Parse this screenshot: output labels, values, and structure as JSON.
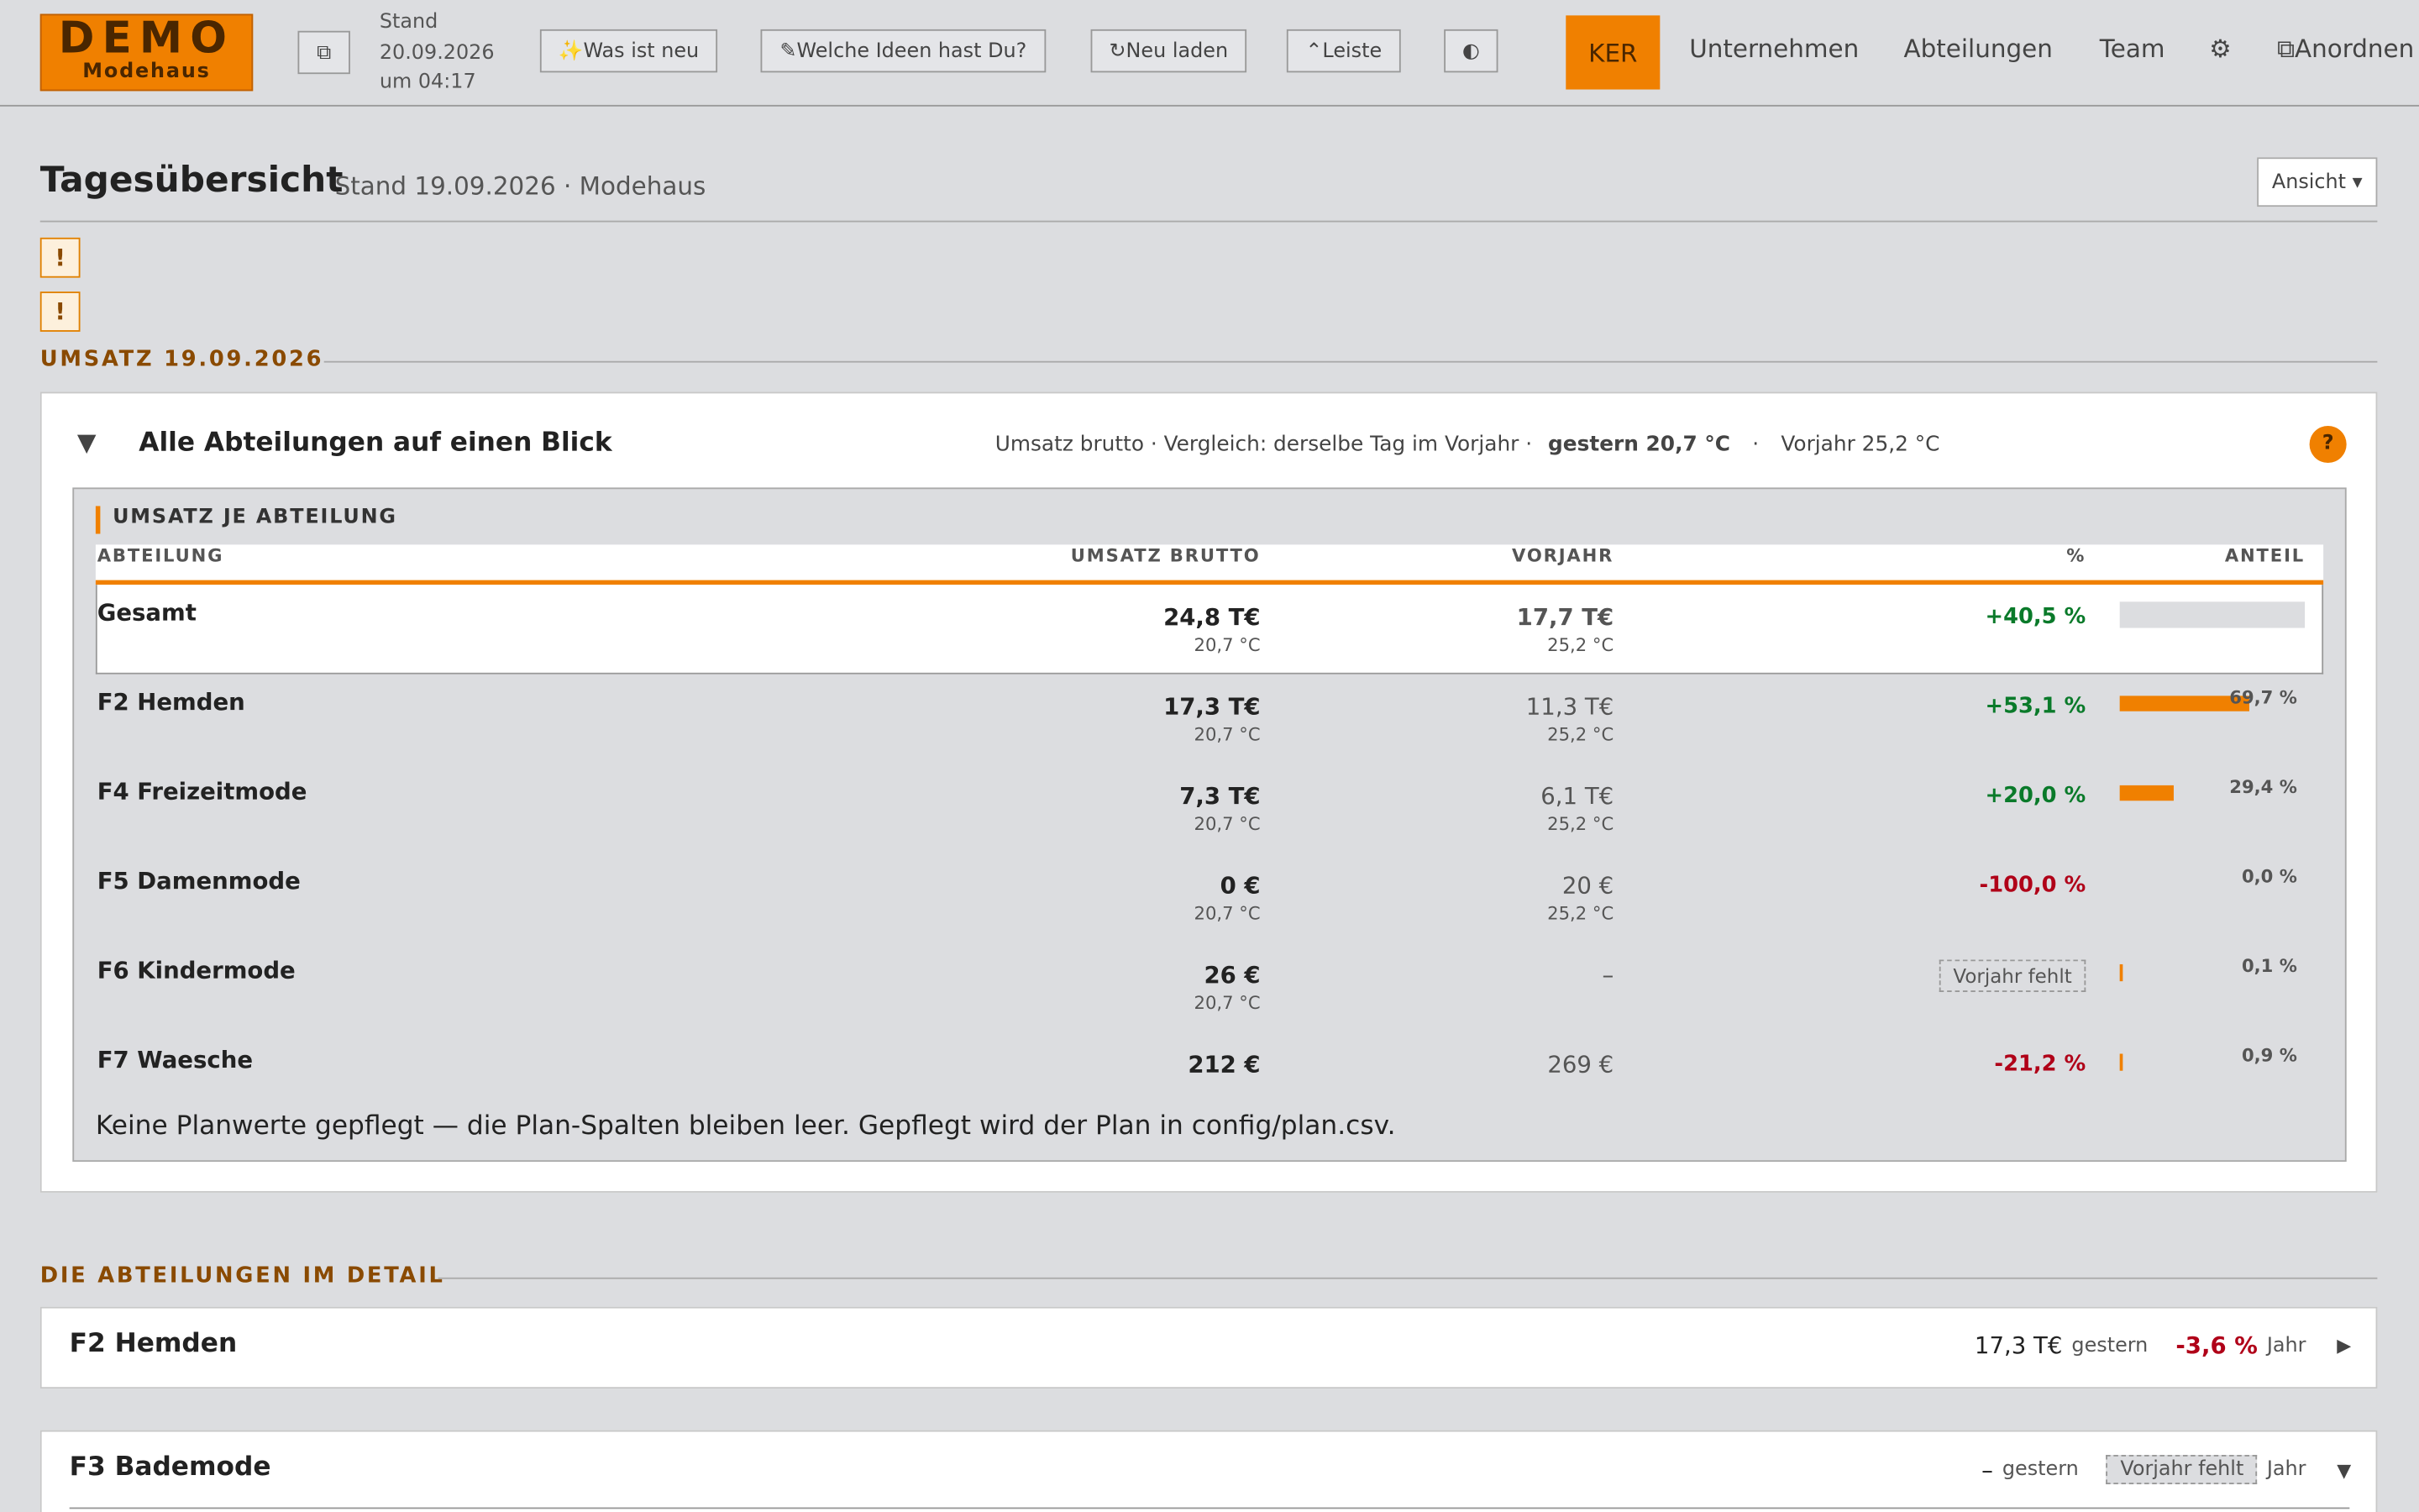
{
  "header": {
    "logo_title": "DEMO",
    "logo_sub": "Modehaus",
    "copy_icon": "⧉",
    "stand_label": "Stand",
    "stand_date": "20.09.2026",
    "stand_time": "um 04:17",
    "buttons": [
      "✨Was ist neu",
      "✎Welche Ideen hast Du?",
      "↻Neu laden",
      "⌃Leiste"
    ],
    "theme_icon": "◐",
    "nav": [
      "KER",
      "Unternehmen",
      "Abteilungen",
      "Team"
    ],
    "settings_icon": "⚙",
    "arrange": "⧉Anordnen"
  },
  "page": {
    "title": "Tagesübersicht",
    "subtitle": "Stand 19.09.2026 · Modehaus",
    "view_button": "Ansicht ▾",
    "alerts": [
      "!",
      "!"
    ]
  },
  "section1": {
    "heading": "UMSATZ 19.09.2026",
    "card": {
      "toggle": "▼",
      "title": "Alle Abteilungen auf einen Blick",
      "info": "Umsatz brutto · Vergleich: derselbe Tag im Vorjahr ·",
      "yesterday": "gestern 20,7 °C",
      "sep": "·",
      "prev_year": "Vorjahr 25,2 °C",
      "help": "?"
    }
  },
  "table": {
    "heading": "UMSATZ JE ABTEILUNG",
    "columns": [
      "ABTEILUNG",
      "UMSATZ BRUTTO",
      "VORJAHR",
      "%",
      "ANTEIL"
    ],
    "rows": [
      {
        "name": "Gesamt",
        "revenue": "24,8 T€",
        "temp": "20,7 °C",
        "prev": "17,7 T€",
        "prev_temp": "25,2 °C",
        "change": "+40,5 %"
      },
      {
        "name": "F2 Hemden",
        "revenue": "17,3 T€",
        "temp": "20,7 °C",
        "prev": "11,3 T€",
        "prev_temp": "25,2 °C",
        "change": "+53,1 %",
        "share": {
          "value": 69.7,
          "label": "69,7 %"
        }
      },
      {
        "name": "F4 Freizeitmode",
        "revenue": "7,3 T€",
        "temp": "20,7 °C",
        "prev": "6,1 T€",
        "prev_temp": "25,2 °C",
        "change": "+20,0 %",
        "share": {
          "value": 29.4,
          "label": "29,4 %"
        }
      },
      {
        "name": "F5 Damenmode",
        "revenue": "0 €",
        "temp": "20,7 °C",
        "prev": "20 €",
        "prev_temp": "25,2 °C",
        "change": "-100,0 %",
        "share": {
          "value": 0.0,
          "label": "0,0 %"
        }
      },
      {
        "name": "F6 Kindermode",
        "revenue": "26 €",
        "temp": "20,7 °C",
        "prev": "–",
        "badge": "Vorjahr fehlt",
        "share": {
          "value": 0.1,
          "label": "0,1 %"
        }
      },
      {
        "name": "F7 Waesche",
        "revenue": "212 €",
        "prev": "269 €",
        "change": "-21,2 %",
        "share": {
          "value": 0.9,
          "label": "0,9 %"
        }
      }
    ],
    "note": "Keine Planwerte gepflegt — die Plan-Spalten bleiben leer. Gepflegt wird der Plan in config/plan.csv."
  },
  "section2": {
    "heading": "DIE ABTEILUNGEN IM DETAIL",
    "items": [
      {
        "name": "F2 Hemden",
        "value": "17,3 T€",
        "value_note": "gestern",
        "change": "-3,6 %",
        "change_note": "Jahr",
        "toggle": "▶"
      },
      {
        "name": "F3 Bademode",
        "value": "–",
        "value_note": "gestern",
        "badge": "Vorjahr fehlt",
        "change_note": "Jahr",
        "toggle": "▼"
      }
    ]
  }
}
